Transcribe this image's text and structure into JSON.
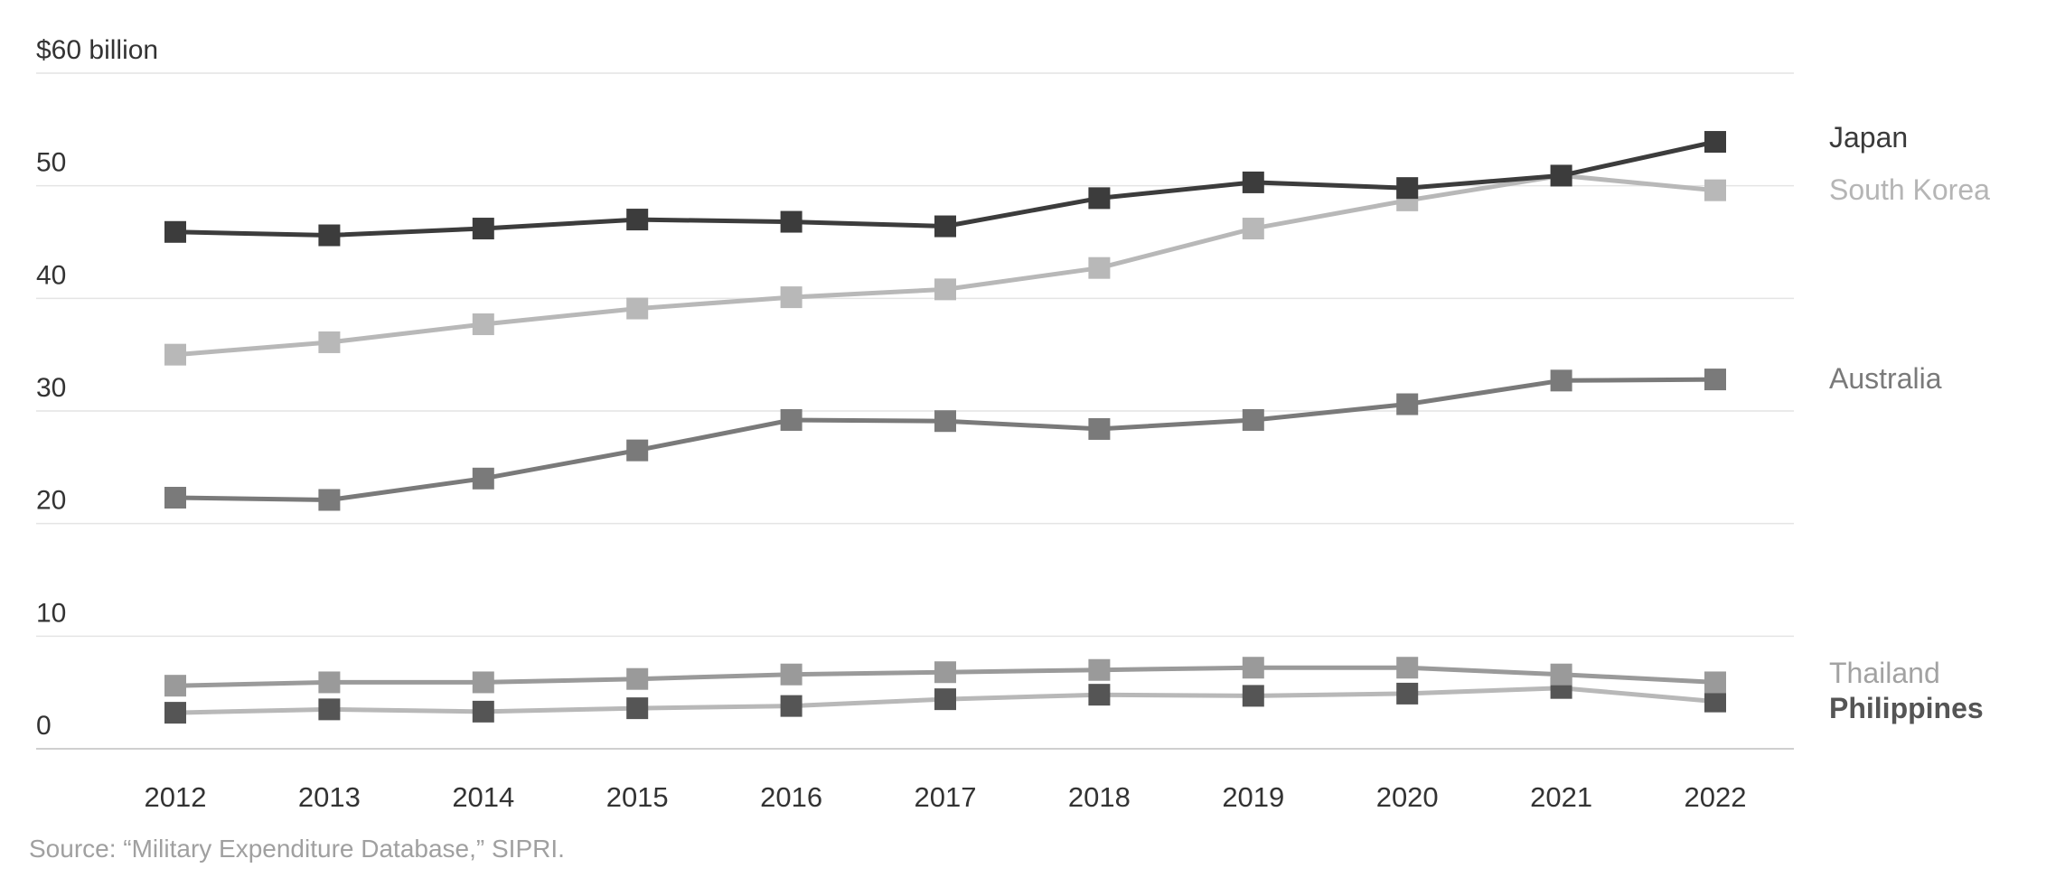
{
  "chart_data": {
    "type": "line",
    "x": [
      2012,
      2013,
      2014,
      2015,
      2016,
      2017,
      2018,
      2019,
      2020,
      2021,
      2022
    ],
    "ylim": [
      0,
      60
    ],
    "y_ticks": [
      0,
      10,
      20,
      30,
      40,
      50,
      60
    ],
    "y_tick_labels": [
      "0",
      "10",
      "20",
      "30",
      "40",
      "50",
      "$60 billion"
    ],
    "grid": true,
    "legend": "direct labels at right end of lines",
    "marker": "square",
    "series": [
      {
        "name": "Australia",
        "color": "#7a7a7a",
        "values": [
          22.3,
          22.1,
          24.0,
          26.5,
          29.2,
          29.1,
          28.4,
          29.2,
          30.6,
          32.7,
          32.8
        ]
      },
      {
        "name": "South Korea",
        "color": "#b8b8b8",
        "values": [
          35.0,
          36.1,
          37.7,
          39.1,
          40.1,
          40.8,
          42.7,
          46.2,
          48.7,
          50.9,
          49.6
        ]
      },
      {
        "name": "Japan",
        "color": "#3c3c3c",
        "values": [
          45.9,
          45.6,
          46.2,
          47.0,
          46.8,
          46.4,
          48.9,
          50.3,
          49.8,
          50.9,
          53.9
        ]
      },
      {
        "name": "Thailand",
        "color": "#9a9a9a",
        "values": [
          5.6,
          5.9,
          5.9,
          6.2,
          6.6,
          6.8,
          7.0,
          7.2,
          7.2,
          6.6,
          5.9
        ]
      },
      {
        "name": "Philippines",
        "color": "#555555",
        "line_color": "#b8b8b8",
        "values": [
          3.2,
          3.5,
          3.3,
          3.6,
          3.8,
          4.4,
          4.8,
          4.7,
          4.9,
          5.4,
          4.2
        ]
      }
    ],
    "source": "Source: “Military Expenditure Database,” SIPRI."
  }
}
